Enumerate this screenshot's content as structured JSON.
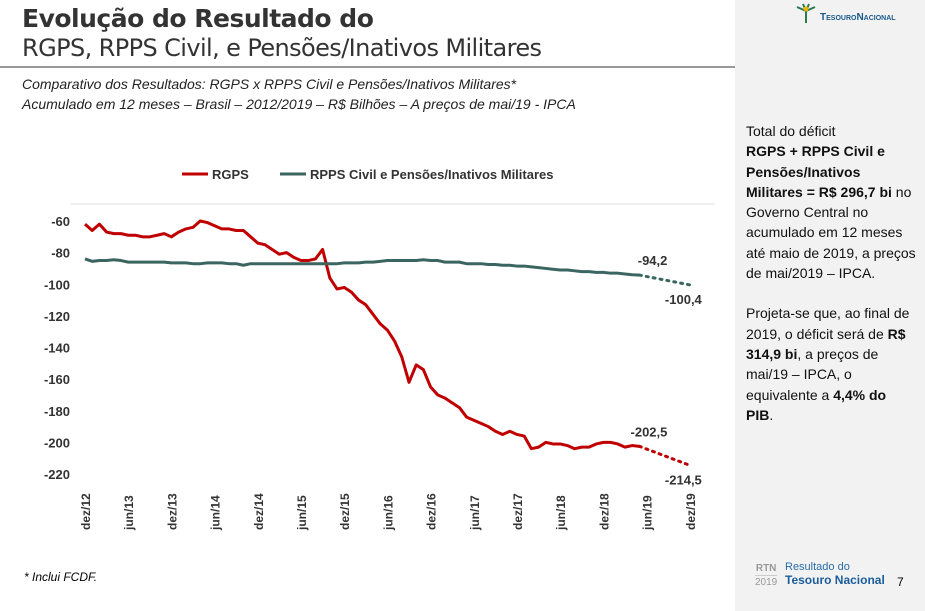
{
  "header": {
    "title_line1": "Evolução do Resultado do",
    "title_line2": "RGPS, RPPS Civil, e Pensões/Inativos Militares",
    "subtitle1": "Comparativo dos Resultados: RGPS x RPPS Civil e Pensões/Inativos Militares*",
    "subtitle2": "Acumulado em 12 meses – Brasil – 2012/2019 – R$ Bilhões – A preços de mai/19 - IPCA",
    "logo": "TesouroNacional"
  },
  "note": {
    "p1_a": "Total do déficit",
    "p1_b": "RGPS + RPPS Civil e Pensões/Inativos Militares = R$ 296,7 bi",
    "p1_c": "no Governo Central no acumulado em 12 meses até maio de 2019, a preços de mai/2019 – IPCA.",
    "p2_a": "Projeta-se que, ao final de 2019, o déficit será de",
    "p2_b": "R$ 314,9 bi",
    "p2_c": ", a preços de mai/19 – IPCA, o equivalente a",
    "p2_d": "4,4% do PIB",
    "p2_e": "."
  },
  "footnote": "* Inclui FCDF.",
  "footer": {
    "rtn": "RTN",
    "year": "2019",
    "line1": "Resultado do",
    "line2": "Tesouro Nacional",
    "page": "7"
  },
  "chart_data": {
    "type": "line",
    "ylim": [
      -220,
      -60
    ],
    "yticks": [
      -60,
      -80,
      -100,
      -120,
      -140,
      -160,
      -180,
      -200,
      -220
    ],
    "xticks": [
      "dez/12",
      "jun/13",
      "dez/13",
      "jun/14",
      "dez/14",
      "jun/15",
      "dez/15",
      "jun/16",
      "dez/16",
      "jun/17",
      "dez/17",
      "jun/18",
      "dez/18",
      "jun/19",
      "dez/19"
    ],
    "grid": false,
    "legend": "top",
    "series": [
      {
        "name": "RGPS",
        "color": "#c00000",
        "values": [
          -62,
          -66,
          -62,
          -67,
          -68,
          -68,
          -69,
          -69,
          -70,
          -70,
          -69,
          -68,
          -70,
          -67,
          -65,
          -64,
          -60,
          -61,
          -63,
          -65,
          -65,
          -66,
          -66,
          -70,
          -74,
          -75,
          -78,
          -81,
          -80,
          -83,
          -85,
          -85,
          -84,
          -78,
          -96,
          -103,
          -102,
          -105,
          -110,
          -113,
          -119,
          -125,
          -129,
          -136,
          -146,
          -162,
          -151,
          -154,
          -165,
          -170,
          -172,
          -175,
          -178,
          -184,
          -186,
          -188,
          -190,
          -193,
          -195,
          -193,
          -195,
          -196,
          -204,
          -203,
          -200,
          -201,
          -201,
          -202,
          -204,
          -203,
          -203,
          -201,
          -200,
          -200,
          -201,
          -203,
          -202,
          -202.5
        ],
        "last_label": "-202,5",
        "projection": -214.5,
        "projection_label": "-214,5"
      },
      {
        "name": "RPPS Civil e Pensões/Inativos Militares",
        "color": "#3b6560",
        "values": [
          -84,
          -85.5,
          -85,
          -85,
          -84.5,
          -85,
          -86,
          -86,
          -86,
          -86,
          -86,
          -86,
          -86.5,
          -86.5,
          -86.5,
          -87,
          -87,
          -86.5,
          -86.5,
          -86.5,
          -87,
          -87,
          -88,
          -87,
          -87,
          -87,
          -87,
          -87,
          -87,
          -87,
          -87,
          -87,
          -87,
          -87,
          -87,
          -87,
          -86.5,
          -86.5,
          -86.5,
          -86,
          -86,
          -85.5,
          -85,
          -85,
          -85,
          -85,
          -85,
          -84.5,
          -85,
          -85,
          -86,
          -86,
          -86,
          -87,
          -87,
          -87,
          -87.5,
          -87.5,
          -88,
          -88,
          -88.5,
          -88.5,
          -89,
          -89.5,
          -90,
          -90.5,
          -91,
          -91,
          -91.5,
          -92,
          -92,
          -92.5,
          -92.5,
          -93,
          -93,
          -93.5,
          -94,
          -94.2
        ],
        "last_label": "-94,2",
        "projection": -100.4,
        "projection_label": "-100,4"
      }
    ]
  }
}
